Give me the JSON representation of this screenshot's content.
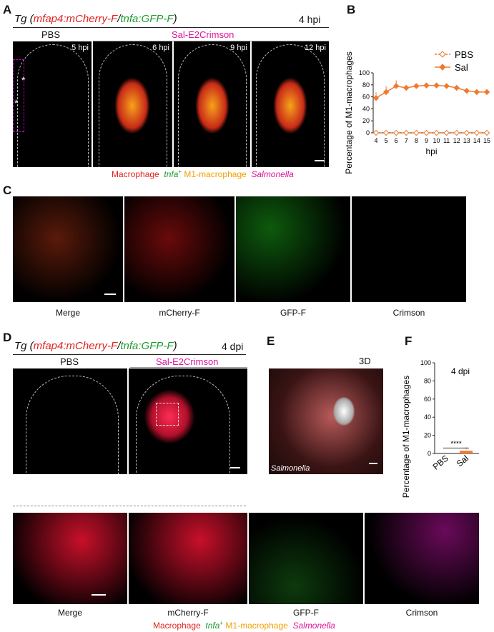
{
  "panels": {
    "A": "A",
    "B": "B",
    "C": "C",
    "D": "D",
    "E": "E",
    "F": "F"
  },
  "A": {
    "tg_prefix": "Tg (",
    "tg_red": "mfap4:mCherry-F",
    "tg_sep": "/",
    "tg_green": "tnfa:GFP-F",
    "tg_suffix": ")",
    "time": "4 hpi",
    "pbs": "PBS",
    "sal": "Sal-E2Crimson",
    "stamps": [
      "5 hpi",
      "6 hpi",
      "9 hpi",
      "12 hpi"
    ],
    "legend": {
      "macrophage": "Macrophage",
      "tnfa": "tnfa",
      "plus": "+",
      "m1": " M1-macrophage",
      "salmonella": "Salmonella"
    }
  },
  "C": {
    "captions": [
      "Merge",
      "mCherry-F",
      "GFP-F",
      "Crimson"
    ]
  },
  "D": {
    "tg_prefix": "Tg (",
    "tg_red": "mfap4:mCherry-F",
    "tg_sep": "/",
    "tg_green": "tnfa:GFP-F",
    "tg_suffix": ")",
    "time": "4 dpi",
    "pbs": "PBS",
    "sal": "Sal-E2Crimson",
    "captions": [
      "Merge",
      "mCherry-F",
      "GFP-F",
      "Crimson"
    ],
    "legend": {
      "macrophage": "Macrophage",
      "tnfa": "tnfa",
      "plus": "+",
      "m1": " M1-macrophage",
      "salmonella": "Salmonella"
    }
  },
  "E": {
    "tag": "3D",
    "label": "Salmonella"
  },
  "chart_data": [
    {
      "type": "line",
      "panel": "B",
      "ylabel": "Percentage of M1-macrophages",
      "xlabel": "hpi",
      "x": [
        4,
        5,
        6,
        7,
        8,
        9,
        10,
        11,
        12,
        13,
        14,
        15
      ],
      "ylim": [
        0,
        100
      ],
      "yticks": [
        0,
        20,
        40,
        60,
        80,
        100
      ],
      "series": [
        {
          "name": "PBS",
          "color": "#f07a2e",
          "marker": "open-diamond",
          "values": [
            0,
            0,
            0,
            0,
            0,
            0,
            0,
            0,
            0,
            0,
            0,
            0
          ]
        },
        {
          "name": "Sal",
          "color": "#f07a2e",
          "marker": "filled-diamond",
          "values": [
            58,
            68,
            78,
            75,
            78,
            79,
            79,
            78,
            75,
            70,
            68,
            68
          ]
        }
      ],
      "legend": "top-right"
    },
    {
      "type": "bar",
      "panel": "F",
      "ylabel": "Percentage of M1-macrophages",
      "categories": [
        "PBS",
        "Sal"
      ],
      "values": [
        0,
        3
      ],
      "ylim": [
        0,
        100
      ],
      "yticks": [
        0,
        20,
        40,
        60,
        80,
        100
      ],
      "annotation": "4 dpi",
      "significance": "****",
      "color": "#f07a2e"
    }
  ]
}
